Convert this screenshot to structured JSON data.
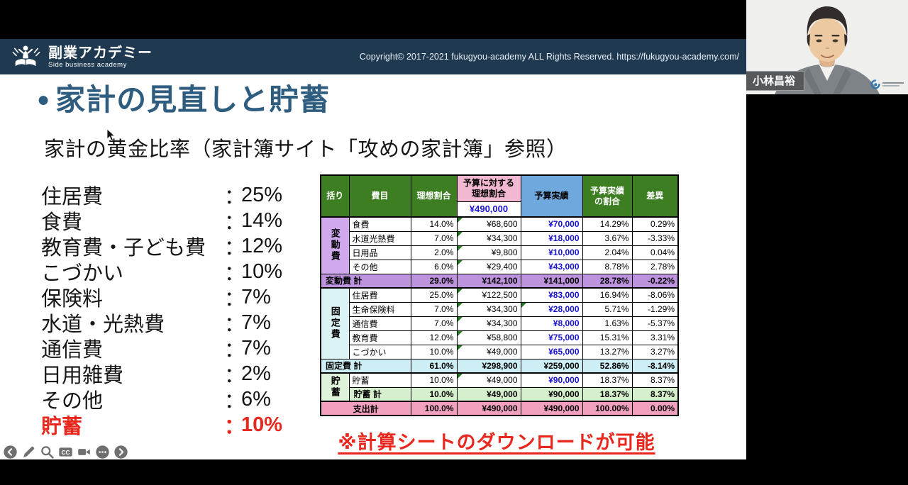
{
  "header": {
    "brand": "副業アカデミー",
    "brand_sub": "Side business academy",
    "copyright": "Copyright© 2017-2021 fukugyou-academy ALL Rights Reserved. https://fukugyou-academy.com/"
  },
  "slide": {
    "bullet": "●",
    "title": "家計の見直しと貯蓄",
    "subtitle": "家計の黄金比率（家計簿サイト「攻めの家計簿」参照）",
    "note": "※計算シートのダウンロードが可能",
    "accent_color": "#2e5d7f",
    "highlight_color": "#e8281e"
  },
  "ratio_list": {
    "colon": "：",
    "items": [
      {
        "label": "住居費",
        "value": "25%"
      },
      {
        "label": "食費",
        "value": "14%"
      },
      {
        "label": "教育費・子ども費",
        "value": "12%"
      },
      {
        "label": "こづかい",
        "value": "10%"
      },
      {
        "label": "保険料",
        "value": "7%"
      },
      {
        "label": "水道・光熱費",
        "value": "7%"
      },
      {
        "label": "通信費",
        "value": "7%"
      },
      {
        "label": "日用雑費",
        "value": "2%"
      },
      {
        "label": "その他",
        "value": "6%"
      },
      {
        "label": "貯蓄",
        "value": "10%",
        "highlight": true
      }
    ]
  },
  "table": {
    "headers": {
      "col1": "括り",
      "col2": "費目",
      "col3": "理想割合",
      "col4": "予算に対する\n理想割合",
      "col4_budget": "¥490,000",
      "col5": "予算実績",
      "col6": "予算実績\nの割合",
      "col7": "差異"
    },
    "colors": {
      "header_green": "#3c7e21",
      "header_pink": "#f2b7d1",
      "header_blue": "#6fa8dc",
      "group_variable": "#cfa9ec",
      "subtotal_variable": "#bd93dd",
      "group_fixed": "#dcf3f6",
      "subtotal_fixed": "#cdeef5",
      "group_saving": "#def3d9",
      "subtotal_saving": "#d6f0cd",
      "total_row": "#f2a0c0",
      "value_blue": "#1812d2",
      "comment_green": "#217a21"
    },
    "rows": [
      {
        "type": "data",
        "heavy_top": true,
        "group": {
          "label": "変動費",
          "rowspan": 4,
          "tone": "group_variable"
        },
        "label": "食費",
        "ideal_pct": "14.0%",
        "ideal_amount": "¥68,600",
        "actual_amount": "¥70,000",
        "actual_pct": "14.29%",
        "diff": "0.29%",
        "comment_marks": [
          "ideal_amount"
        ]
      },
      {
        "type": "data",
        "label": "水道光熱費",
        "ideal_pct": "7.0%",
        "ideal_amount": "¥34,300",
        "actual_amount": "¥18,000",
        "actual_pct": "3.67%",
        "diff": "-3.33%",
        "comment_marks": [
          "ideal_amount"
        ]
      },
      {
        "type": "data",
        "label": "日用品",
        "ideal_pct": "2.0%",
        "ideal_amount": "¥9,800",
        "actual_amount": "¥10,000",
        "actual_pct": "2.04%",
        "diff": "0.04%",
        "comment_marks": [
          "ideal_amount"
        ]
      },
      {
        "type": "data",
        "label": "その他",
        "ideal_pct": "6.0%",
        "ideal_amount": "¥29,400",
        "actual_amount": "¥43,000",
        "actual_pct": "8.78%",
        "diff": "2.78%",
        "comment_marks": [
          "ideal_amount"
        ]
      },
      {
        "type": "subtotal",
        "tone": "subtotal_variable",
        "label": "変動費 計",
        "ideal_pct": "29.0%",
        "ideal_amount": "¥142,100",
        "actual_amount": "¥141,000",
        "actual_pct": "28.78%",
        "diff": "-0.22%"
      },
      {
        "type": "data",
        "heavy_top": true,
        "group": {
          "label": "固定費",
          "rowspan": 5,
          "tone": "group_fixed"
        },
        "label": "住居費",
        "ideal_pct": "25.0%",
        "ideal_amount": "¥122,500",
        "actual_amount": "¥83,000",
        "actual_pct": "16.94%",
        "diff": "-8.06%",
        "comment_marks": [
          "ideal_amount"
        ]
      },
      {
        "type": "data",
        "label": "生命保険料",
        "ideal_pct": "7.0%",
        "ideal_amount": "¥34,300",
        "actual_amount": "¥28,000",
        "actual_pct": "5.71%",
        "diff": "-1.29%",
        "comment_marks": [
          "ideal_amount",
          "actual_amount"
        ]
      },
      {
        "type": "data",
        "label": "通信費",
        "ideal_pct": "7.0%",
        "ideal_amount": "¥34,300",
        "actual_amount": "¥8,000",
        "actual_pct": "1.63%",
        "diff": "-5.37%",
        "comment_marks": [
          "ideal_amount"
        ]
      },
      {
        "type": "data",
        "label": "教育費",
        "ideal_pct": "12.0%",
        "ideal_amount": "¥58,800",
        "actual_amount": "¥75,000",
        "actual_pct": "15.31%",
        "diff": "3.31%",
        "comment_marks": [
          "ideal_amount"
        ]
      },
      {
        "type": "data",
        "label": "こづかい",
        "ideal_pct": "10.0%",
        "ideal_amount": "¥49,000",
        "actual_amount": "¥65,000",
        "actual_pct": "13.27%",
        "diff": "3.27%",
        "comment_marks": [
          "ideal_amount"
        ]
      },
      {
        "type": "subtotal",
        "tone": "subtotal_fixed",
        "label": "固定費 計",
        "ideal_pct": "61.0%",
        "ideal_amount": "¥298,900",
        "actual_amount": "¥259,000",
        "actual_pct": "52.86%",
        "diff": "-8.14%"
      },
      {
        "type": "data",
        "heavy_top": true,
        "group": {
          "label": "貯蓄",
          "rowspan": 2,
          "tone": "group_saving"
        },
        "label": "貯蓄",
        "ideal_pct": "10.0%",
        "ideal_amount": "¥49,000",
        "actual_amount": "¥90,000",
        "actual_pct": "18.37%",
        "diff": "8.37%",
        "comment_marks": [
          "ideal_amount"
        ]
      },
      {
        "type": "subtotal",
        "tone": "subtotal_saving",
        "under_group": true,
        "label": "貯蓄 計",
        "ideal_pct": "10.0%",
        "ideal_amount": "¥49,000",
        "actual_amount": "¥90,000",
        "actual_pct": "18.37%",
        "diff": "8.37%"
      },
      {
        "type": "total",
        "heavy_top": true,
        "tone": "total_row",
        "label": "支出計",
        "ideal_pct": "100.0%",
        "ideal_amount": "¥490,000",
        "actual_amount": "¥490,000",
        "actual_pct": "100.00%",
        "diff": "0.00%"
      }
    ]
  },
  "toolbar": {
    "icons": [
      {
        "name": "back"
      },
      {
        "name": "draw"
      },
      {
        "name": "search"
      },
      {
        "name": "captions"
      },
      {
        "name": "camera"
      },
      {
        "name": "more"
      },
      {
        "name": "forward"
      }
    ]
  },
  "webcam": {
    "name_label": "小林昌裕"
  }
}
